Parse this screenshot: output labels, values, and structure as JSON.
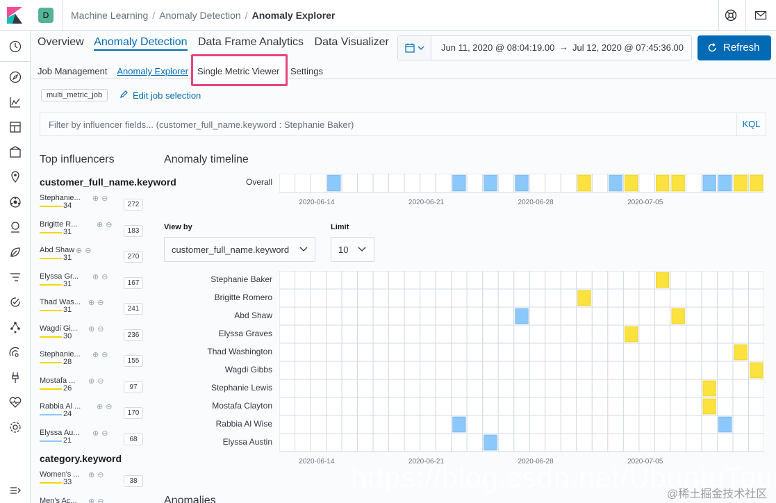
{
  "header": {
    "space_initial": "D",
    "breadcrumbs": [
      "Machine Learning",
      "Anomaly Detection",
      "Anomaly Explorer"
    ]
  },
  "tabs": {
    "main": [
      "Overview",
      "Anomaly Detection",
      "Data Frame Analytics",
      "Data Visualizer"
    ],
    "main_active": 1,
    "sub": [
      "Job Management",
      "Anomaly Explorer",
      "Single Metric Viewer",
      "Settings"
    ],
    "sub_active": 1
  },
  "datepicker": {
    "start": "Jun 11, 2020 @ 08:04:19.00",
    "arrow": "→",
    "end": "Jul 12, 2020 @ 07:45:36.00"
  },
  "refresh_label": "Refresh",
  "job": {
    "badge": "multi_metric_job",
    "edit_label": "Edit job selection"
  },
  "filter": {
    "placeholder": "Filter by influencer fields... (customer_full_name.keyword : Stephanie Baker)",
    "kql": "KQL"
  },
  "influencers": {
    "title": "Top influencers",
    "groups": [
      {
        "field": "customer_full_name.keyword",
        "items": [
          {
            "name": "Stephanie...",
            "score": "34",
            "count": "272",
            "color": "#f5d800"
          },
          {
            "name": "Brigitte R...",
            "score": "31",
            "count": "183",
            "color": "#f5d800"
          },
          {
            "name": "Abd Shaw",
            "score": "31",
            "count": "270",
            "color": "#f5d800"
          },
          {
            "name": "Elyssa Gr...",
            "score": "31",
            "count": "167",
            "color": "#f5d800"
          },
          {
            "name": "Thad Was...",
            "score": "31",
            "count": "241",
            "color": "#f5d800"
          },
          {
            "name": "Wagdi Gi...",
            "score": "30",
            "count": "236",
            "color": "#f5d800"
          },
          {
            "name": "Stephanie...",
            "score": "28",
            "count": "155",
            "color": "#f5d800"
          },
          {
            "name": "Mostafa ...",
            "score": "26",
            "count": "97",
            "color": "#f5d800"
          },
          {
            "name": "Rabbia Al ...",
            "score": "24",
            "count": "170",
            "color": "#8bc8fb"
          },
          {
            "name": "Elyssa Au...",
            "score": "21",
            "count": "68",
            "color": "#8bc8fb"
          }
        ]
      },
      {
        "field": "category.keyword",
        "items": [
          {
            "name": "Women's ...",
            "score": "33",
            "count": "38",
            "color": "#f5d800"
          },
          {
            "name": "Men's Ac...",
            "score": "",
            "count": "",
            "color": "#f5d800"
          }
        ]
      }
    ]
  },
  "timeline": {
    "title": "Anomaly timeline",
    "overall_label": "Overall",
    "date_ticks": [
      "2020-06-14",
      "2020-06-21",
      "2020-06-28",
      "2020-07-05"
    ],
    "colors": {
      "blue": "#8bc8fb",
      "yellow": "#fbe23f"
    },
    "columns": 31,
    "overall_cells": [
      {
        "col": 3,
        "c": "blue"
      },
      {
        "col": 11,
        "c": "blue"
      },
      {
        "col": 13,
        "c": "blue"
      },
      {
        "col": 15,
        "c": "blue"
      },
      {
        "col": 19,
        "c": "yellow"
      },
      {
        "col": 21,
        "c": "blue"
      },
      {
        "col": 22,
        "c": "yellow"
      },
      {
        "col": 24,
        "c": "yellow"
      },
      {
        "col": 25,
        "c": "yellow"
      },
      {
        "col": 27,
        "c": "blue"
      },
      {
        "col": 28,
        "c": "blue"
      },
      {
        "col": 29,
        "c": "yellow"
      },
      {
        "col": 30,
        "c": "yellow"
      }
    ],
    "view_by_label": "View by",
    "view_by_value": "customer_full_name.keyword",
    "limit_label": "Limit",
    "limit_value": "10",
    "rows": [
      {
        "name": "Stephanie Baker",
        "cells": [
          {
            "col": 24,
            "c": "yellow"
          }
        ]
      },
      {
        "name": "Brigitte Romero",
        "cells": [
          {
            "col": 19,
            "c": "yellow"
          }
        ]
      },
      {
        "name": "Abd Shaw",
        "cells": [
          {
            "col": 15,
            "c": "blue"
          },
          {
            "col": 25,
            "c": "yellow"
          }
        ]
      },
      {
        "name": "Elyssa Graves",
        "cells": [
          {
            "col": 22,
            "c": "yellow"
          }
        ]
      },
      {
        "name": "Thad Washington",
        "cells": [
          {
            "col": 29,
            "c": "yellow"
          }
        ]
      },
      {
        "name": "Wagdi Gibbs",
        "cells": [
          {
            "col": 30,
            "c": "yellow"
          }
        ]
      },
      {
        "name": "Stephanie Lewis",
        "cells": [
          {
            "col": 27,
            "c": "yellow"
          }
        ]
      },
      {
        "name": "Mostafa Clayton",
        "cells": [
          {
            "col": 27,
            "c": "yellow"
          }
        ]
      },
      {
        "name": "Rabbia Al Wise",
        "cells": [
          {
            "col": 11,
            "c": "blue"
          },
          {
            "col": 28,
            "c": "blue"
          }
        ]
      },
      {
        "name": "Elyssa Austin",
        "cells": [
          {
            "col": 13,
            "c": "blue"
          }
        ]
      }
    ]
  },
  "anomalies_title": "Anomalies",
  "watermark": "https://blog.csdn.net/UbuntuTouch",
  "watermark_site": "@稀土掘金技术社区"
}
